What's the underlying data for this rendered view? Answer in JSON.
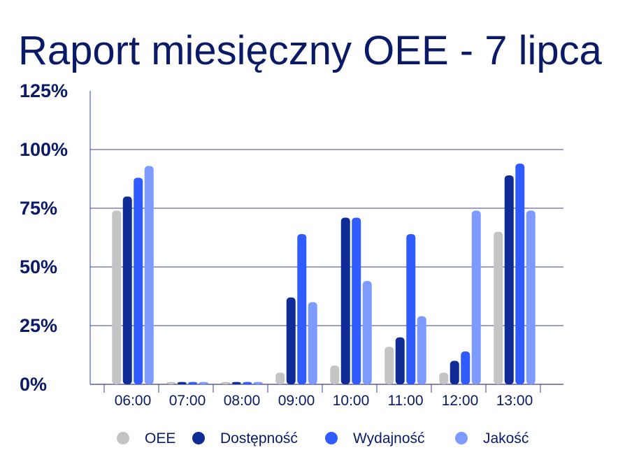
{
  "colors": {
    "title": "#0a1a66",
    "axis_text": "#0a1a66",
    "grid": "#3a3f8f",
    "series": [
      "#c4c4c4",
      "#0f2c96",
      "#2f5bff",
      "#7d9bff"
    ]
  },
  "chart_data": {
    "type": "bar",
    "title": "Raport miesięczny OEE - 7 lipca",
    "xlabel": "",
    "ylabel": "",
    "ylim": [
      0,
      125
    ],
    "yticks": [
      0,
      25,
      50,
      75,
      100,
      125
    ],
    "ytick_labels": [
      "0%",
      "25%",
      "50%",
      "75%",
      "100%",
      "125%"
    ],
    "grid_values": [
      25,
      50,
      75,
      100
    ],
    "categories": [
      "06:00",
      "07:00",
      "08:00",
      "09:00",
      "10:00",
      "11:00",
      "12:00",
      "13:00"
    ],
    "legend_position": "bottom",
    "series": [
      {
        "name": "OEE",
        "values": [
          74,
          1,
          1,
          5,
          8,
          16,
          5,
          65
        ]
      },
      {
        "name": "Dostępność",
        "values": [
          80,
          1,
          1,
          37,
          71,
          20,
          10,
          89
        ]
      },
      {
        "name": "Wydajność",
        "values": [
          88,
          1,
          1,
          64,
          71,
          64,
          14,
          94
        ]
      },
      {
        "name": "Jakość",
        "values": [
          93,
          1,
          1,
          35,
          44,
          29,
          74,
          74
        ]
      }
    ]
  }
}
